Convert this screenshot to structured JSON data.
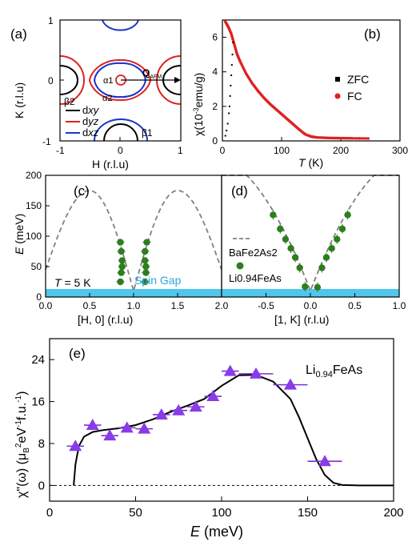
{
  "chart_data": [
    {
      "panel_label": "(a)",
      "type": "diagram",
      "xlabel": "H (r.l.u)",
      "ylabel": "K (r.l.u)",
      "xlim": [
        -1,
        1
      ],
      "ylim": [
        -1,
        1
      ],
      "xticks": [
        -1,
        0,
        1
      ],
      "yticks": [
        -1,
        0,
        1
      ],
      "hole_labels": [
        "α1",
        "α2"
      ],
      "electron_labels": [
        "β1",
        "β2"
      ],
      "vector_label": "Q",
      "vector_subscript": "AFM",
      "legend": [
        {
          "label": "d",
          "orbital": "xy",
          "color": "#000000"
        },
        {
          "label": "d",
          "orbital": "yz",
          "color": "#e02020"
        },
        {
          "label": "d",
          "orbital": "xz",
          "color": "#1a35c8"
        }
      ]
    },
    {
      "panel_label": "(b)",
      "type": "scatter",
      "xlabel": "T (K)",
      "ylabel": "χ(10⁻³emu/g)",
      "xlim": [
        0,
        300
      ],
      "ylim": [
        0,
        7
      ],
      "xticks": [
        0,
        100,
        200,
        300
      ],
      "yticks": [
        0,
        2,
        4,
        6
      ],
      "series": [
        {
          "name": "ZFC",
          "color": "#000000",
          "x": [
            5,
            7,
            9,
            11,
            12,
            13,
            14,
            15,
            16,
            17,
            18
          ],
          "y": [
            0.3,
            0.6,
            1.0,
            1.6,
            2.0,
            2.6,
            3.2,
            3.8,
            4.4,
            5.0,
            5.7
          ]
        },
        {
          "name": "FC",
          "color": "#e02020",
          "x": [
            5,
            10,
            15,
            20,
            25,
            30,
            40,
            50,
            60,
            70,
            80,
            90,
            100,
            110,
            120,
            130,
            140,
            150,
            160,
            180,
            200,
            220,
            250
          ],
          "y": [
            6.9,
            6.6,
            6.2,
            5.6,
            5.0,
            4.6,
            3.9,
            3.35,
            2.9,
            2.5,
            2.15,
            1.85,
            1.55,
            1.25,
            0.95,
            0.65,
            0.38,
            0.25,
            0.2,
            0.17,
            0.16,
            0.15,
            0.14
          ]
        }
      ]
    },
    {
      "panel_label": "(c)",
      "type": "scatter",
      "xlabel": "[H, 0]  (r.l.u)",
      "ylabel": "E (meV)",
      "xlim": [
        0,
        2
      ],
      "ylim": [
        0,
        200
      ],
      "xticks": [
        "0.0",
        "0.5",
        "1.0",
        "1.5",
        "2.0"
      ],
      "yticks": [
        0,
        50,
        100,
        150,
        200
      ],
      "annotation_temp": "T = 5 K",
      "spin_gap_label": "Spin Gap",
      "spin_gap_meV": 12,
      "dispersion_curve": "BaFe2As2",
      "points": {
        "E": [
          25,
          40,
          50,
          60,
          75,
          90
        ],
        "H_left": [
          0.85,
          0.86,
          0.87,
          0.87,
          0.86,
          0.85
        ],
        "H_right": [
          1.13,
          1.14,
          1.14,
          1.13,
          1.13,
          1.15
        ]
      }
    },
    {
      "panel_label": "(d)",
      "type": "scatter",
      "xlabel": "[1, K]  (r.l.u)",
      "xlim": [
        -1,
        1
      ],
      "ylim": [
        0,
        200
      ],
      "xticks": [
        "-0.5",
        "0.0",
        "0.5",
        "1.0"
      ],
      "legend": [
        {
          "label": "BaFe2As2",
          "style": "dashed",
          "color": "#808080"
        },
        {
          "label": "Li0.94FeAs",
          "style": "point",
          "color": "#2e7d1e"
        }
      ],
      "points": {
        "K": [
          -0.42,
          -0.34,
          -0.28,
          -0.22,
          -0.17,
          -0.12,
          -0.06,
          0.08,
          0.13,
          0.18,
          0.24,
          0.3,
          0.36,
          0.42
        ],
        "E": [
          135,
          112,
          95,
          80,
          65,
          48,
          17,
          16,
          48,
          65,
          80,
          95,
          112,
          135
        ]
      }
    },
    {
      "panel_label": "(e)",
      "type": "scatter",
      "title": "Li0.94FeAs",
      "xlabel": "E (meV)",
      "ylabel": "χ\"(ω) (μB²eV⁻¹f.u.⁻¹)",
      "xlim": [
        0,
        200
      ],
      "ylim": [
        -3,
        28
      ],
      "xticks": [
        0,
        50,
        100,
        150,
        200
      ],
      "yticks": [
        0,
        8,
        16,
        24
      ],
      "points": {
        "E": [
          15,
          25,
          35,
          45,
          55,
          65,
          75,
          85,
          95,
          105,
          120,
          140,
          160
        ],
        "chi": [
          7.5,
          11.5,
          9.5,
          11.0,
          10.8,
          13.5,
          14.3,
          15.0,
          17.0,
          21.8,
          21.3,
          19.2,
          4.6
        ],
        "xerr": [
          5,
          5,
          5,
          5,
          5,
          5,
          5,
          5,
          5,
          5,
          10,
          10,
          10
        ]
      },
      "fit_curve": {
        "E": [
          14,
          15,
          17,
          20,
          25,
          30,
          40,
          50,
          60,
          70,
          80,
          90,
          100,
          110,
          120,
          130,
          140,
          145,
          150,
          155,
          160,
          165,
          170,
          180,
          200
        ],
        "chi": [
          0,
          4.0,
          7.5,
          9.3,
          10.2,
          10.5,
          10.9,
          11.5,
          12.6,
          14.0,
          15.2,
          16.5,
          19.0,
          21.0,
          21.1,
          19.8,
          16.5,
          13.0,
          9.0,
          5.0,
          2.0,
          0.5,
          0.1,
          0,
          0
        ]
      },
      "baseline": 0
    }
  ]
}
